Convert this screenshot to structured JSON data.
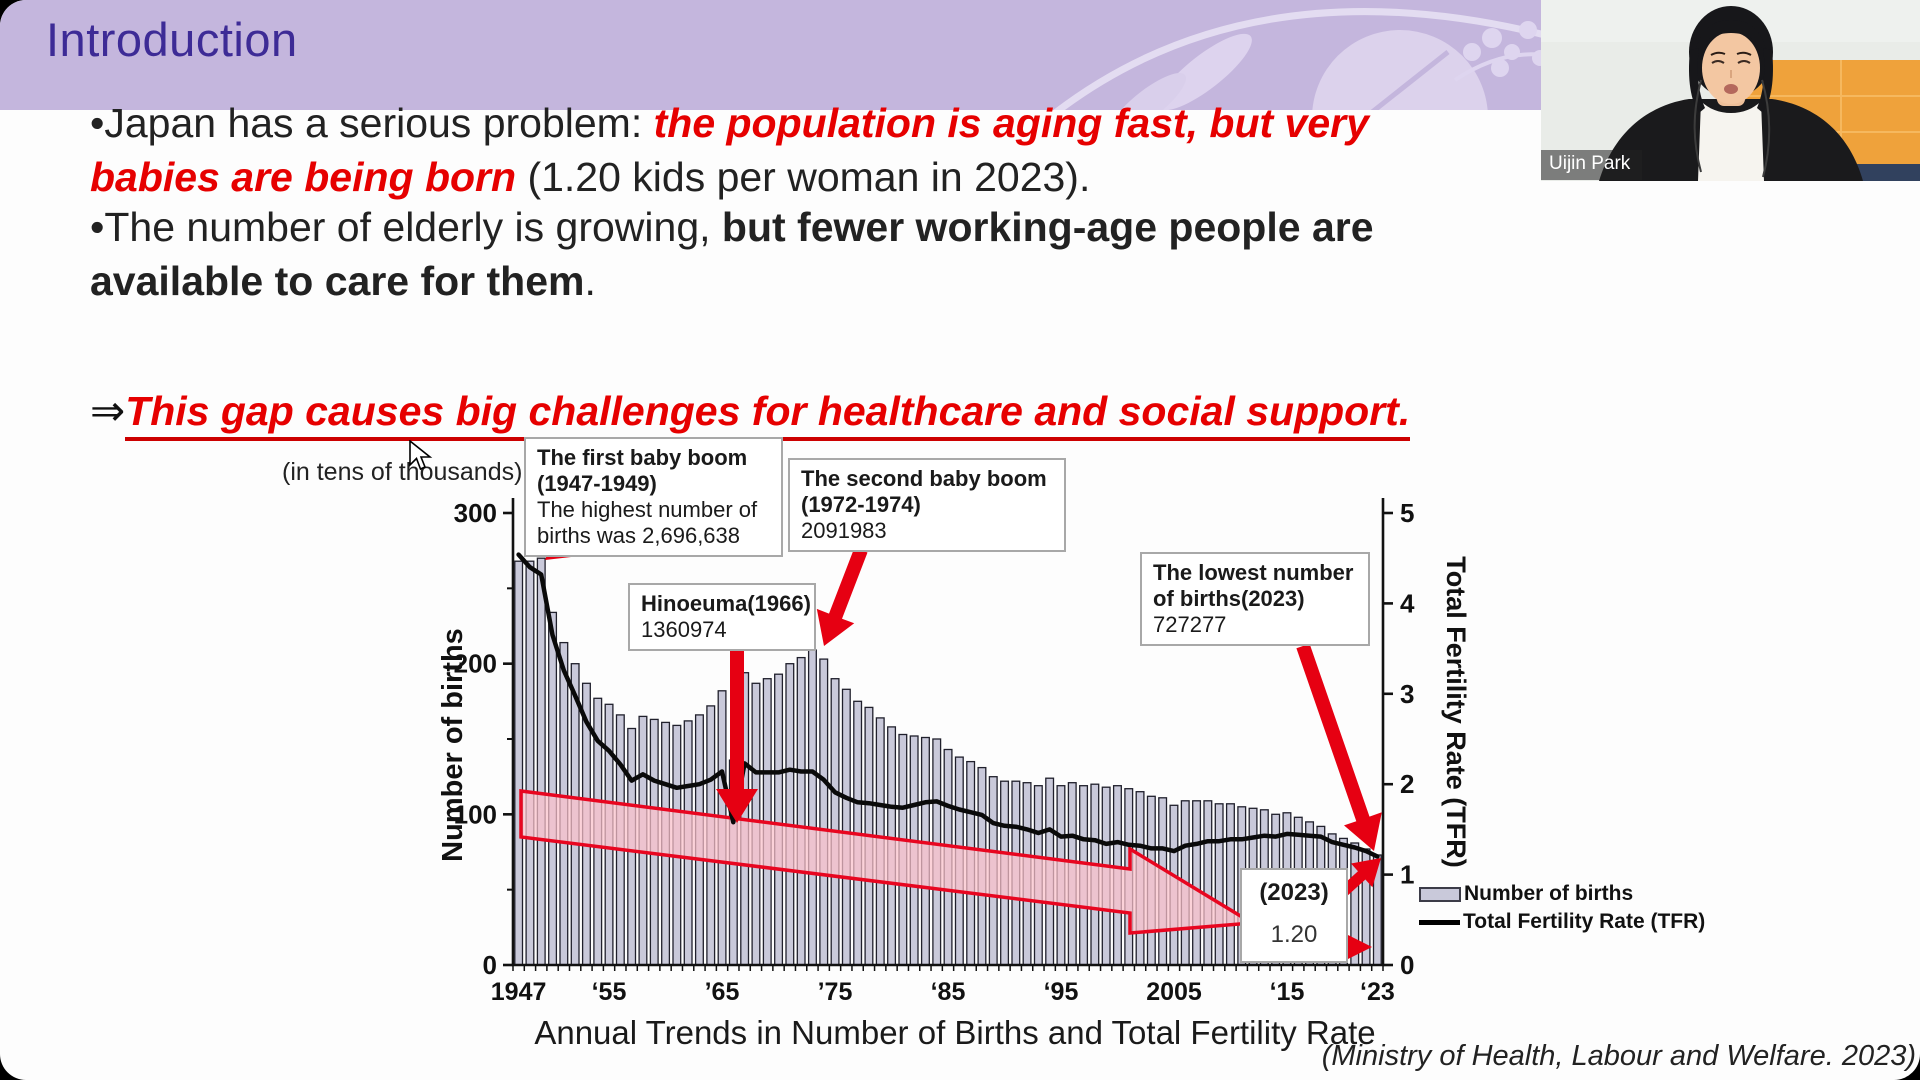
{
  "header": {
    "title": "Introduction"
  },
  "webcam": {
    "name_label": "Uijin Park"
  },
  "bullets": {
    "b1_prefix": "•Japan has a serious problem: ",
    "b1_red_l1": "the population is aging fast, but very",
    "b1_red_l2": "babies are being born",
    "b1_suffix": " (1.20 kids per woman in 2023).",
    "b2_prefix": "•The number of elderly is growing, ",
    "b2_bold_l1": "but fewer working-age people are",
    "b2_bold_l2": "available to care for them",
    "b2_suffix": ".",
    "arrow_symbol": "⇒",
    "arrow_text": "This gap causes big challenges for healthcare and social support."
  },
  "footer": {
    "source": "(Ministry of Health, Labour and Welfare. 2023)"
  },
  "chart_data": {
    "type": "bar",
    "title": "Annual Trends in Number of Births and Total Fertility Rate",
    "x_range": [
      1947,
      2023
    ],
    "grid": false,
    "legend_position": "right",
    "left_axis": {
      "label": "Number of births",
      "note": "(in tens of thousands)",
      "range": [
        0,
        300
      ],
      "ticks": [
        0,
        100,
        200,
        300
      ],
      "minor_ticks": [
        50,
        150,
        250
      ]
    },
    "right_axis": {
      "label": "Total Fertility Rate (TFR)",
      "range": [
        0,
        5
      ],
      "ticks": [
        0,
        1,
        2,
        3,
        4,
        5
      ]
    },
    "x_ticks": [
      {
        "year": 1947,
        "label": "1947"
      },
      {
        "year": 1955,
        "label": "‘55"
      },
      {
        "year": 1965,
        "label": "’65"
      },
      {
        "year": 1975,
        "label": "’75"
      },
      {
        "year": 1985,
        "label": "‘85"
      },
      {
        "year": 1995,
        "label": "‘95"
      },
      {
        "year": 2005,
        "label": "2005"
      },
      {
        "year": 2015,
        "label": "‘15"
      },
      {
        "year": 2023,
        "label": "‘23"
      }
    ],
    "series": [
      {
        "name": "Number of births",
        "type": "bar",
        "axis": "left",
        "unit": "tens of thousands",
        "values": [
          268,
          268,
          270,
          234,
          214,
          200,
          187,
          177,
          173,
          166,
          157,
          165,
          163,
          161,
          159,
          162,
          166,
          172,
          182,
          136,
          194,
          187,
          190,
          193,
          200,
          204,
          209,
          203,
          190,
          183,
          175,
          171,
          164,
          158,
          153,
          152,
          151,
          150,
          143,
          138,
          135,
          131,
          125,
          122,
          122,
          121,
          119,
          124,
          119,
          121,
          119,
          120,
          118,
          119,
          117,
          115,
          112,
          111,
          106,
          109,
          109,
          109,
          107,
          107,
          105,
          104,
          103,
          100,
          101,
          98,
          95,
          92,
          87,
          84,
          81,
          77,
          73
        ]
      },
      {
        "name": "Total Fertility Rate (TFR)",
        "type": "line",
        "axis": "right",
        "values": [
          4.54,
          4.4,
          4.32,
          3.65,
          3.26,
          2.98,
          2.69,
          2.48,
          2.37,
          2.22,
          2.04,
          2.11,
          2.04,
          2.0,
          1.96,
          1.98,
          2.0,
          2.05,
          2.14,
          1.58,
          2.23,
          2.13,
          2.13,
          2.13,
          2.16,
          2.14,
          2.14,
          2.05,
          1.91,
          1.85,
          1.8,
          1.79,
          1.77,
          1.75,
          1.74,
          1.77,
          1.8,
          1.81,
          1.76,
          1.72,
          1.69,
          1.66,
          1.57,
          1.54,
          1.53,
          1.5,
          1.46,
          1.5,
          1.42,
          1.43,
          1.39,
          1.38,
          1.34,
          1.36,
          1.33,
          1.32,
          1.29,
          1.29,
          1.26,
          1.32,
          1.34,
          1.37,
          1.37,
          1.39,
          1.39,
          1.41,
          1.43,
          1.42,
          1.45,
          1.44,
          1.43,
          1.42,
          1.36,
          1.33,
          1.3,
          1.26,
          1.2
        ]
      }
    ],
    "annotations": {
      "first_boom": {
        "l1": "The first baby boom",
        "l2": "(1947-1949)",
        "l3": "The highest number of",
        "l4": "births was 2,696,638"
      },
      "hinoeuma": {
        "l1": "Hinoeuma(1966)",
        "l2": "1360974"
      },
      "second_boom": {
        "l1": "The second baby boom",
        "l2": "(1972-1974)",
        "l3": "2091983"
      },
      "lowest": {
        "l1": "The lowest number",
        "l2": "of births(2023)",
        "l3": "727277"
      },
      "tfr2023": {
        "l1": "(2023)",
        "l2": "1.20"
      }
    },
    "colors": {
      "bar_fill": "#c9c9da",
      "bar_stroke": "#20202c",
      "line": "#0a0a0a",
      "trend_arrow_fill": "#fbc0ca",
      "trend_arrow_stroke": "#e80620",
      "callout_red": "#e60012",
      "header_bg": "#c4b6dd",
      "title_purple": "#3d2b96",
      "text_red": "#e60000"
    }
  }
}
